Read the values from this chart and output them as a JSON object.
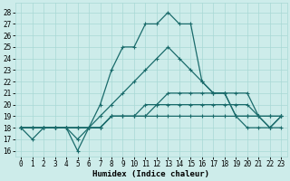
{
  "xlabel": "Humidex (Indice chaleur)",
  "xlim": [
    -0.5,
    23.5
  ],
  "ylim": [
    15.5,
    28.8
  ],
  "yticks": [
    16,
    17,
    18,
    19,
    20,
    21,
    22,
    23,
    24,
    25,
    26,
    27,
    28
  ],
  "xticks": [
    0,
    1,
    2,
    3,
    4,
    5,
    6,
    7,
    8,
    9,
    10,
    11,
    12,
    13,
    14,
    15,
    16,
    17,
    18,
    19,
    20,
    21,
    22,
    23
  ],
  "background_color": "#cdecea",
  "grid_color": "#a8d8d5",
  "line_color": "#1a6b6b",
  "lines": [
    [
      18,
      17,
      18,
      18,
      18,
      16,
      18,
      20,
      23,
      25,
      25,
      27,
      27,
      28,
      27,
      27,
      22,
      21,
      21,
      19,
      18,
      18,
      18,
      19
    ],
    [
      18,
      18,
      18,
      18,
      18,
      17,
      18,
      19,
      20,
      21,
      22,
      23,
      24,
      25,
      24,
      23,
      22,
      21,
      21,
      19,
      19,
      19,
      18,
      19
    ],
    [
      18,
      18,
      18,
      18,
      18,
      18,
      18,
      18,
      19,
      19,
      19,
      20,
      20,
      21,
      21,
      21,
      21,
      21,
      21,
      21,
      21,
      19,
      18,
      18
    ],
    [
      18,
      18,
      18,
      18,
      18,
      18,
      18,
      18,
      19,
      19,
      19,
      19,
      20,
      20,
      20,
      20,
      20,
      20,
      20,
      20,
      20,
      19,
      19,
      19
    ],
    [
      18,
      18,
      18,
      18,
      18,
      18,
      18,
      18,
      19,
      19,
      19,
      19,
      19,
      19,
      19,
      19,
      19,
      19,
      19,
      19,
      19,
      19,
      19,
      19
    ]
  ],
  "marker": "+",
  "markersize": 3,
  "linewidth": 0.9,
  "tick_fontsize": 5.5,
  "xlabel_fontsize": 6.5
}
